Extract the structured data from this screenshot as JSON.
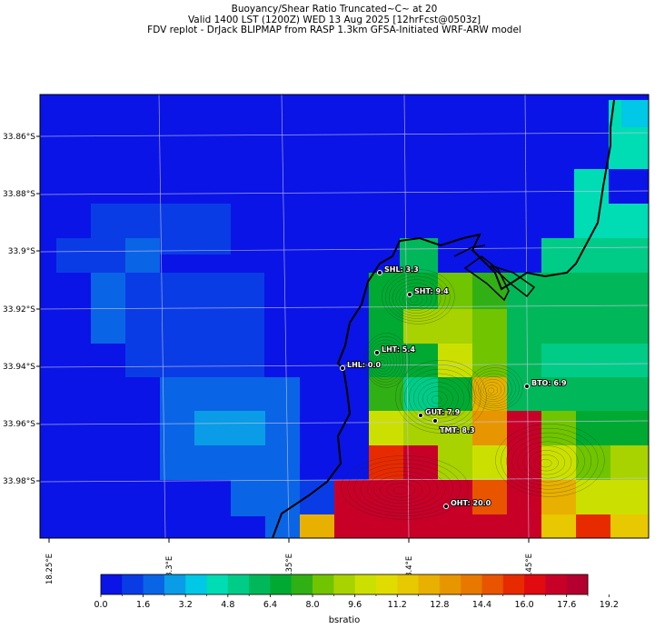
{
  "title": {
    "line1": "Buoyancy/Shear Ratio Truncated~C~    at 20",
    "line2": "Valid 1400 LST (1200Z) WED 13 Aug 2025 [12hrFcst@0503z]",
    "line3": "FDV replot - DrJack BLIPMAP from RASP 1.3km GFSA-Initiated WRF-ARW model"
  },
  "map": {
    "y_ticks": [
      "33.86°S",
      "33.88°S",
      "33.9°S",
      "33.92°S",
      "33.94°S",
      "33.96°S",
      "33.98°S"
    ],
    "x_ticks": [
      "18.25°E",
      "18.3°E",
      "18.35°E",
      "18.4°E",
      "18.45°E"
    ],
    "sites": [
      {
        "id": "SHL",
        "label": "SHL: 3.3",
        "value": 3.3
      },
      {
        "id": "SHT",
        "label": "SHT: 9.4",
        "value": 9.4
      },
      {
        "id": "LHT",
        "label": "LHT: 5.4",
        "value": 5.4
      },
      {
        "id": "LHL",
        "label": "LHL: 0.0",
        "value": 0.0
      },
      {
        "id": "BTO",
        "label": "BTO: 6.9",
        "value": 6.9
      },
      {
        "id": "GUT",
        "label": "GUT: 7.9",
        "value": 7.9
      },
      {
        "id": "TMT",
        "label": "TMT: 8.3",
        "value": 8.3
      },
      {
        "id": "OHT",
        "label": "OHT: 20.0",
        "value": 20.0
      }
    ]
  },
  "colorbar": {
    "label": "bsratio",
    "tick_labels": [
      "0.0",
      "1.6",
      "3.2",
      "4.8",
      "6.4",
      "8.0",
      "9.6",
      "11.2",
      "12.8",
      "14.4",
      "16.0",
      "17.6",
      "19.2"
    ],
    "colors": [
      "#0a14e6",
      "#0a3ce6",
      "#0a64e6",
      "#0a9ce6",
      "#00c8e6",
      "#00dcb4",
      "#00cc88",
      "#00b85a",
      "#00aa32",
      "#30b014",
      "#70c400",
      "#a8d200",
      "#cce000",
      "#e0dc00",
      "#e8c800",
      "#e8b000",
      "#e89600",
      "#e87800",
      "#e85400",
      "#e82a00",
      "#e00a10",
      "#c80028",
      "#b40030"
    ]
  }
}
